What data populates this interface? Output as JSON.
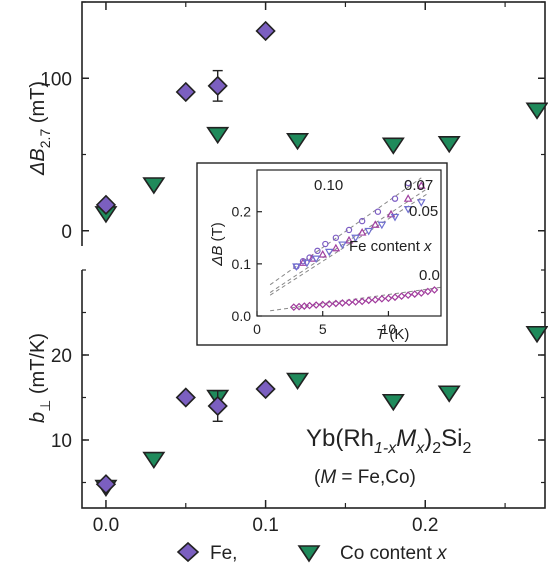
{
  "chart_data": [
    {
      "type": "scatter",
      "panel": "top",
      "ylabel_main": "ΔB",
      "ylabel_sub": "2.7",
      "ylabel_unit": " (mT)",
      "ylim": [
        -10,
        150
      ],
      "xlim": [
        -0.015,
        0.275
      ],
      "yticks": [
        "0",
        "100"
      ],
      "series": [
        {
          "marker": "diamond",
          "color": "#7b5fc0",
          "points": [
            {
              "x": 0.0,
              "y": 17
            },
            {
              "x": 0.05,
              "y": 91
            },
            {
              "x": 0.07,
              "y": 95,
              "err": 10
            },
            {
              "x": 0.1,
              "y": 131
            }
          ]
        },
        {
          "marker": "triangle-down",
          "color": "#1f8a5b",
          "points": [
            {
              "x": 0.0,
              "y": 11
            },
            {
              "x": 0.03,
              "y": 30
            },
            {
              "x": 0.07,
              "y": 63
            },
            {
              "x": 0.12,
              "y": 59
            },
            {
              "x": 0.18,
              "y": 56
            },
            {
              "x": 0.215,
              "y": 57
            },
            {
              "x": 0.27,
              "y": 79
            }
          ]
        }
      ]
    },
    {
      "type": "scatter",
      "panel": "bottom",
      "ylabel_main": "b",
      "ylabel_sub": "⊥",
      "ylabel_unit": " (mT/K)",
      "ylim": [
        2,
        30
      ],
      "xlim": [
        -0.015,
        0.275
      ],
      "yticks": [
        "10",
        "20"
      ],
      "xticks": [
        "0.0",
        "0.1",
        "0.2"
      ],
      "series": [
        {
          "marker": "diamond",
          "color": "#7b5fc0",
          "points": [
            {
              "x": 0.0,
              "y": 4.8
            },
            {
              "x": 0.05,
              "y": 15
            },
            {
              "x": 0.07,
              "y": 14,
              "err": 1.8
            },
            {
              "x": 0.1,
              "y": 16
            }
          ]
        },
        {
          "marker": "triangle-down",
          "color": "#1f8a5b",
          "points": [
            {
              "x": 0.0,
              "y": 4.4
            },
            {
              "x": 0.03,
              "y": 7.7
            },
            {
              "x": 0.07,
              "y": 15
            },
            {
              "x": 0.12,
              "y": 17
            },
            {
              "x": 0.18,
              "y": 14.5
            },
            {
              "x": 0.215,
              "y": 15.5
            },
            {
              "x": 0.27,
              "y": 22.5
            }
          ]
        }
      ]
    },
    {
      "type": "scatter",
      "panel": "inset",
      "xlabel": "T",
      "xlabel_unit": " (K)",
      "ylabel_main": "ΔB",
      "ylabel_unit": " (T)",
      "xlim": [
        0,
        14
      ],
      "ylim": [
        0,
        0.28
      ],
      "xticks": [
        "0",
        "5",
        "10"
      ],
      "yticks": [
        "0.0",
        "0.1",
        "0.2"
      ],
      "series": [
        {
          "label": "0.10",
          "marker": "circle",
          "color": "#7c5cc4",
          "x": [
            3,
            3.5,
            4,
            4.6,
            5.2,
            6,
            7,
            8,
            9.2,
            10.5,
            11.5
          ],
          "y": [
            0.095,
            0.105,
            0.112,
            0.125,
            0.138,
            0.15,
            0.165,
            0.182,
            0.2,
            0.225,
            0.255
          ],
          "fit": [
            [
              1,
              0.06
            ],
            [
              12.5,
              0.265
            ]
          ]
        },
        {
          "label": "0.07",
          "marker": "triangle-up",
          "color": "#a040a0",
          "x": [
            3.5,
            4.2,
            5,
            6,
            7,
            8,
            9,
            10.2,
            11.5,
            12.5
          ],
          "y": [
            0.102,
            0.11,
            0.118,
            0.13,
            0.145,
            0.16,
            0.175,
            0.195,
            0.225,
            0.25
          ],
          "fit": [
            [
              1,
              0.045
            ],
            [
              13,
              0.245
            ]
          ]
        },
        {
          "label": "0.05",
          "marker": "triangle-down",
          "color": "#6f6fd0",
          "x": [
            3,
            3.8,
            4.5,
            5.5,
            6.5,
            7.5,
            8.5,
            9.5,
            10.5,
            11.5,
            12.5
          ],
          "y": [
            0.095,
            0.102,
            0.11,
            0.123,
            0.137,
            0.15,
            0.163,
            0.175,
            0.19,
            0.205,
            0.218
          ],
          "fit": [
            [
              1,
              0.04
            ],
            [
              13,
              0.235
            ]
          ]
        },
        {
          "label": "0.0",
          "marker": "diamond",
          "color": "#a03a9c",
          "x": [
            2.8,
            3.2,
            3.6,
            4.0,
            4.5,
            5,
            5.5,
            6,
            6.5,
            7,
            7.5,
            8,
            8.5,
            9,
            9.5,
            10,
            10.5,
            11,
            11.5,
            12,
            12.5,
            13,
            13.5
          ],
          "y": [
            0.017,
            0.018,
            0.019,
            0.02,
            0.021,
            0.022,
            0.023,
            0.024,
            0.025,
            0.026,
            0.027,
            0.028,
            0.03,
            0.031,
            0.033,
            0.034,
            0.036,
            0.038,
            0.04,
            0.042,
            0.044,
            0.047,
            0.05
          ],
          "fit": [
            [
              1,
              0.01
            ],
            [
              14,
              0.055
            ]
          ]
        }
      ],
      "annotation": "Fe content x"
    }
  ],
  "texts": {
    "compound": "Yb(Rh",
    "compound_sub1": "1-x",
    "compound_M": "M",
    "compound_sub2": "x",
    "compound_tail": ")",
    "compound_sub3": "2",
    "compound_si": "Si",
    "compound_sub4": "2",
    "subtitle_open": "(",
    "subtitle_M": "M",
    "subtitle_rest": " = Fe,Co)",
    "legend_fe": "Fe,",
    "legend_co": "Co  content ",
    "legend_x": "x"
  }
}
